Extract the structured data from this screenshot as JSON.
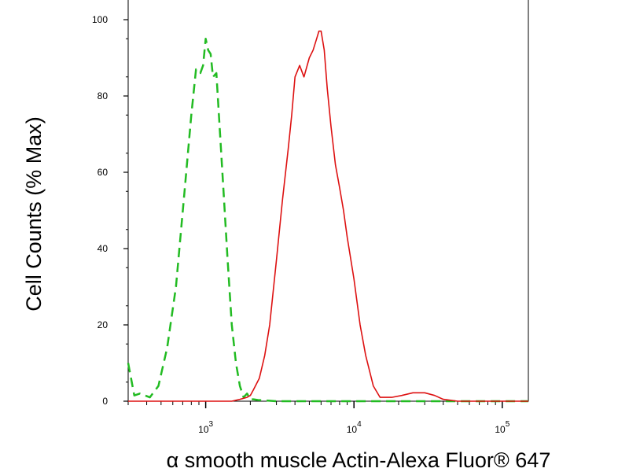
{
  "chart_data": {
    "type": "line",
    "title": "",
    "xlabel": "α smooth muscle Actin-Alexa Fluor® 647",
    "ylabel": "Cell Counts (% Max)",
    "xscale": "log",
    "xlim": [
      300,
      150000
    ],
    "ylim": [
      0,
      100
    ],
    "grid": false,
    "legend": "none",
    "y_ticks": [
      {
        "value": 0,
        "label": "0"
      },
      {
        "value": 20,
        "label": "20"
      },
      {
        "value": 40,
        "label": "40"
      },
      {
        "value": 60,
        "label": "60"
      },
      {
        "value": 80,
        "label": "80"
      },
      {
        "value": 100,
        "label": "100"
      }
    ],
    "x_major_ticks": [
      {
        "value": 1000,
        "base": "10",
        "exp": "3"
      },
      {
        "value": 10000,
        "base": "10",
        "exp": "4"
      },
      {
        "value": 100000,
        "base": "10",
        "exp": "5"
      }
    ],
    "series": [
      {
        "color": "#22bb22",
        "line_style": "dashed",
        "x": [
          300,
          330,
          360,
          420,
          480,
          550,
          630,
          720,
          800,
          860,
          920,
          960,
          1000,
          1040,
          1080,
          1120,
          1180,
          1250,
          1320,
          1400,
          1500,
          1600,
          1700,
          1800,
          1900,
          2000,
          2100,
          2250,
          2500,
          3000,
          5000,
          10000,
          30000,
          60000,
          150000
        ],
        "y": [
          10,
          1.5,
          2,
          1,
          4,
          14,
          30,
          55,
          75,
          87,
          86,
          88,
          95,
          92,
          91,
          85,
          86,
          70,
          55,
          38,
          20,
          10,
          4,
          1,
          2,
          0.5,
          0.5,
          0.3,
          0.2,
          0,
          0,
          0,
          0,
          0,
          0
        ]
      },
      {
        "color": "#dd1111",
        "line_style": "solid",
        "x": [
          300,
          1500,
          1700,
          1900,
          2000,
          2100,
          2300,
          2500,
          2700,
          3000,
          3300,
          3600,
          3800,
          4000,
          4300,
          4600,
          5000,
          5300,
          5600,
          5800,
          6000,
          6300,
          6600,
          7000,
          7500,
          8000,
          8500,
          9000,
          10000,
          11000,
          12000,
          13500,
          15000,
          18000,
          21000,
          25000,
          30000,
          35000,
          40000,
          50000,
          150000
        ],
        "y": [
          0,
          0,
          0.5,
          1,
          1.5,
          3,
          6,
          12,
          20,
          37,
          53,
          66,
          75,
          85,
          88,
          85,
          90,
          92,
          95,
          97,
          97,
          92,
          82,
          72,
          62,
          56,
          50,
          43,
          32,
          20,
          12,
          4,
          1,
          1,
          1.5,
          2.2,
          2.2,
          1.5,
          0.5,
          0,
          0
        ]
      }
    ]
  }
}
